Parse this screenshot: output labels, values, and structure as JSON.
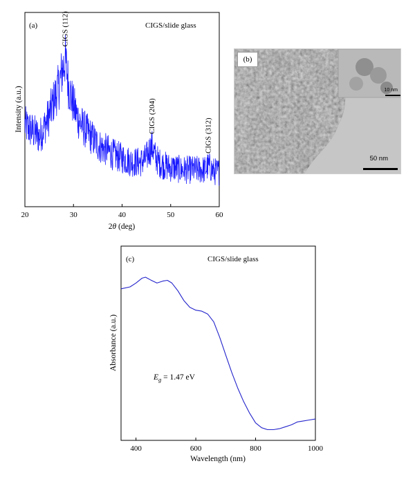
{
  "chart_data": [
    {
      "panel": "(a)",
      "type": "line",
      "annotation": "CIGS/slide glass",
      "xlabel_prefix": "2",
      "xlabel_symbol": "θ",
      "xlabel_suffix": " (deg)",
      "ylabel": "Intensity (a.u.)",
      "xlim": [
        20,
        60
      ],
      "xticks": [
        "20",
        "30",
        "40",
        "50",
        "60"
      ],
      "xtick_values": [
        20,
        30,
        40,
        50,
        60
      ],
      "ylim": [
        0,
        100
      ],
      "series": [
        {
          "color": "#1a1aff",
          "x": [
            20,
            21,
            22,
            23,
            24,
            25,
            26,
            27,
            27.5,
            28,
            28.3,
            28.6,
            29,
            30,
            31,
            32,
            33,
            34,
            35,
            36,
            37,
            38,
            39,
            40,
            41,
            42,
            43,
            44,
            45,
            45.6,
            46.2,
            46.8,
            47.5,
            48,
            49,
            50,
            51,
            52,
            53,
            54,
            55,
            56,
            57,
            57.8,
            58.5,
            59,
            60
          ],
          "y": [
            42,
            40,
            38,
            36,
            41,
            47,
            55,
            62,
            68,
            73,
            76,
            71,
            62,
            52,
            45,
            41,
            38,
            35,
            32,
            30,
            29,
            27,
            26,
            25,
            24,
            23,
            23,
            23,
            25,
            29,
            31,
            26,
            23,
            22,
            21,
            20,
            20,
            19,
            19,
            19,
            19,
            19,
            19,
            21,
            19,
            18,
            18
          ]
        }
      ],
      "peaks": [
        {
          "label": "CIGS (112)",
          "x": 28.3
        },
        {
          "label": "CIGS (204)",
          "x": 46.2
        },
        {
          "label": "CIGS (312)",
          "x": 57.8
        }
      ]
    },
    {
      "panel": "(c)",
      "type": "line",
      "annotation": "CIGS/slide glass",
      "xlabel": "Wavelength (nm)",
      "ylabel": "Absorbance (a.u.)",
      "xlim": [
        350,
        1000
      ],
      "xticks": [
        "400",
        "600",
        "800",
        "1000"
      ],
      "xtick_values": [
        400,
        600,
        800,
        1000
      ],
      "ylim": [
        0,
        100
      ],
      "series": [
        {
          "color": "#2222cc",
          "x": [
            350,
            380,
            400,
            420,
            432,
            450,
            470,
            490,
            505,
            520,
            540,
            560,
            580,
            600,
            620,
            640,
            660,
            680,
            700,
            720,
            740,
            760,
            780,
            800,
            820,
            840,
            860,
            880,
            900,
            920,
            940,
            960,
            980,
            1000
          ],
          "y": [
            78,
            79,
            81,
            83.5,
            84,
            82.5,
            81,
            82,
            82.4,
            81,
            77,
            72,
            68.5,
            67,
            66.5,
            65,
            61,
            53,
            44,
            35,
            27,
            20,
            14,
            9,
            6.5,
            5.5,
            5.5,
            6,
            7,
            8,
            9.5,
            10,
            10.5,
            11
          ]
        }
      ],
      "band_gap_symbol": "E",
      "band_gap_subscript": "g",
      "band_gap_value": " = 1.47 eV"
    }
  ],
  "tem_panel": {
    "panel": "(b)",
    "scale_bar_label": "50 nm",
    "inset_scale_bar_label": "10 nm"
  }
}
